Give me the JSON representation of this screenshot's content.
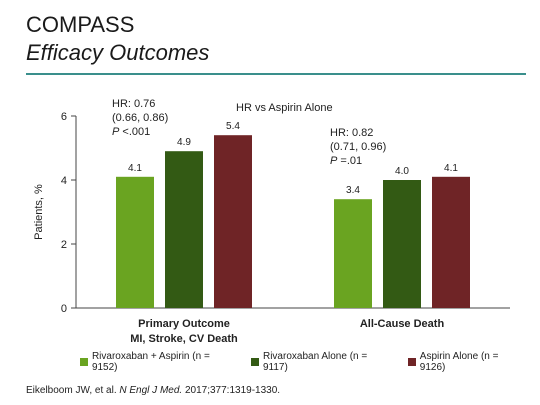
{
  "slide": {
    "title": "COMPASS",
    "subtitle": "Efficacy Outcomes",
    "accent_color": "#3a8f8c",
    "citation_authors": "Eikelboom JW, et al.",
    "citation_journal": "N Engl J Med.",
    "citation_details": "2017;377:1319-1330."
  },
  "chart_data": {
    "type": "bar",
    "ylabel": "Patients, %",
    "ylim": [
      0,
      6
    ],
    "yticks": [
      0,
      2,
      4,
      6
    ],
    "categories": [
      "Primary Outcome\nMI, Stroke, CV Death",
      "All-Cause Death"
    ],
    "category_lines": [
      [
        "Primary Outcome",
        "MI, Stroke, CV Death"
      ],
      [
        "All-Cause Death"
      ]
    ],
    "series": [
      {
        "name": "Rivaroxaban + Aspirin (n = 9152)",
        "color": "#6aa421",
        "values": [
          4.1,
          3.4
        ]
      },
      {
        "name": "Rivaroxaban Alone (n = 9117)",
        "color": "#335a14",
        "values": [
          4.9,
          4.0
        ]
      },
      {
        "name": "Aspirin Alone (n = 9126)",
        "color": "#6f2426",
        "values": [
          5.4,
          4.1
        ]
      }
    ],
    "data_labels": [
      [
        "4.1",
        "3.4"
      ],
      [
        "4.9",
        "4.0"
      ],
      [
        "5.4",
        "4.1"
      ]
    ],
    "header_annotation": "HR vs Aspirin Alone",
    "annotations": [
      {
        "lines": [
          "HR: 0.76",
          "(0.66, 0.86)"
        ],
        "p_label": "P",
        "p_value": " <.001"
      },
      {
        "lines": [
          "HR: 0.82",
          "(0.71, 0.96)"
        ],
        "p_label": "P",
        "p_value": " =.01"
      }
    ],
    "grid": false,
    "legend_position": "bottom"
  }
}
